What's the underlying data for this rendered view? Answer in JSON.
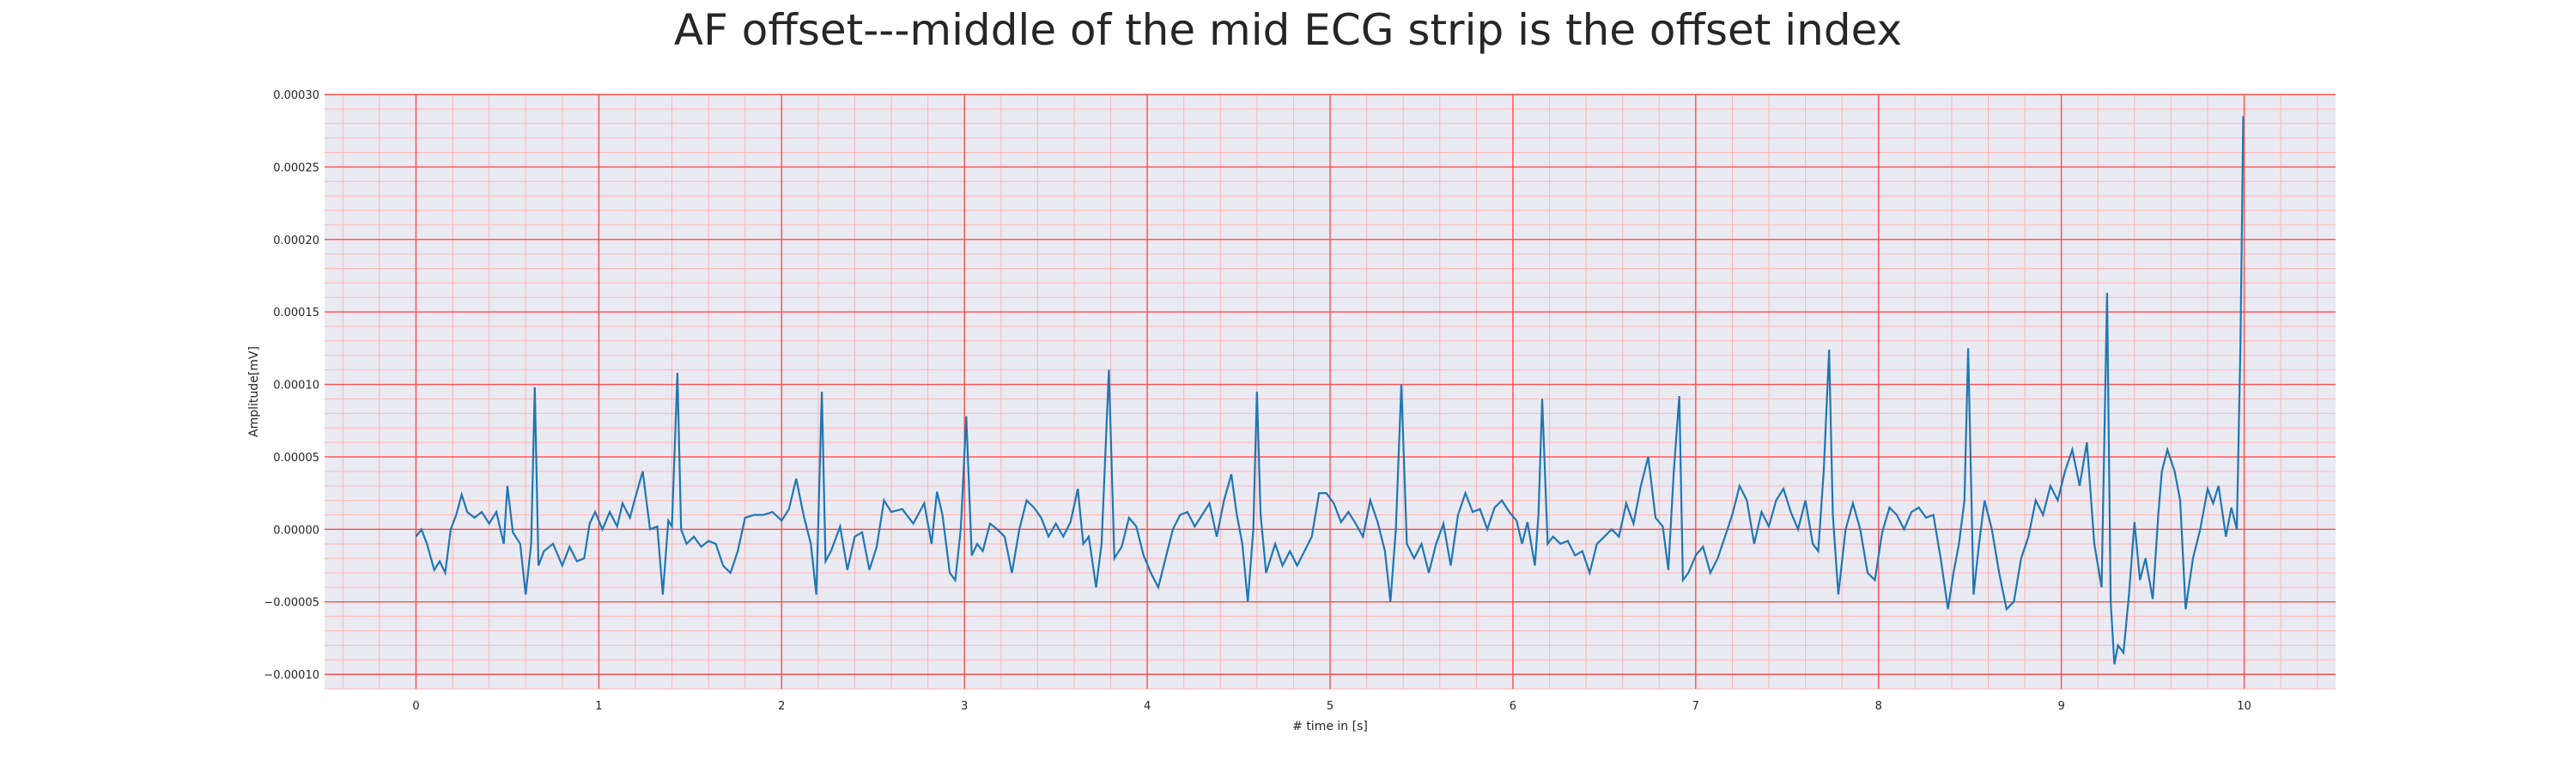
{
  "chart_data": {
    "type": "line",
    "title": "AF offset---middle of the mid ECG strip is the offset index",
    "xlabel": "# time in [s]",
    "ylabel": "Amplitude[mV]",
    "xlim": [
      -0.5,
      10.5
    ],
    "ylim": [
      -0.00011,
      0.0003
    ],
    "xticks": [
      0,
      1,
      2,
      3,
      4,
      5,
      6,
      7,
      8,
      9,
      10
    ],
    "xtick_labels": [
      "0",
      "1",
      "2",
      "3",
      "4",
      "5",
      "6",
      "7",
      "8",
      "9",
      "10"
    ],
    "yticks": [
      -0.0001,
      -5e-05,
      0,
      5e-05,
      0.0001,
      0.00015,
      0.0002,
      0.00025,
      0.0003
    ],
    "ytick_labels": [
      "−0.00010",
      "−0.00005",
      "0.00000",
      "0.00005",
      "0.00010",
      "0.00015",
      "0.00020",
      "0.00025",
      "0.00030"
    ],
    "grid": true,
    "minor_grid": true,
    "colors": {
      "background": "#eaeaf2",
      "major_grid": "#ff4d4d",
      "minor_grid": "#ffb3b3",
      "line": "#1f77b4"
    },
    "series": [
      {
        "points": [
          [
            0.0,
            -5e-06
          ],
          [
            0.03,
            0.0
          ],
          [
            0.06,
            -1e-05
          ],
          [
            0.1,
            -2.8e-05
          ],
          [
            0.13,
            -2.2e-05
          ],
          [
            0.16,
            -3e-05
          ],
          [
            0.19,
            0.0
          ],
          [
            0.22,
            1e-05
          ],
          [
            0.25,
            2.4e-05
          ],
          [
            0.28,
            1.2e-05
          ],
          [
            0.32,
            8e-06
          ],
          [
            0.36,
            1.2e-05
          ],
          [
            0.4,
            4e-06
          ],
          [
            0.44,
            1.2e-05
          ],
          [
            0.48,
            -1e-05
          ],
          [
            0.5,
            3e-05
          ],
          [
            0.53,
            -2e-06
          ],
          [
            0.57,
            -1e-05
          ],
          [
            0.6,
            -4.5e-05
          ],
          [
            0.63,
            -1e-05
          ],
          [
            0.65,
            9.8e-05
          ],
          [
            0.67,
            -2.5e-05
          ],
          [
            0.7,
            -1.5e-05
          ],
          [
            0.75,
            -1e-05
          ],
          [
            0.8,
            -2.5e-05
          ],
          [
            0.84,
            -1.2e-05
          ],
          [
            0.88,
            -2.2e-05
          ],
          [
            0.92,
            -2e-05
          ],
          [
            0.95,
            4e-06
          ],
          [
            0.98,
            1.2e-05
          ],
          [
            1.02,
            0.0
          ],
          [
            1.06,
            1.2e-05
          ],
          [
            1.1,
            2e-06
          ],
          [
            1.13,
            1.8e-05
          ],
          [
            1.17,
            8e-06
          ],
          [
            1.2,
            2.2e-05
          ],
          [
            1.24,
            4e-05
          ],
          [
            1.28,
            0.0
          ],
          [
            1.32,
            2e-06
          ],
          [
            1.35,
            -4.5e-05
          ],
          [
            1.38,
            6e-06
          ],
          [
            1.4,
            2e-06
          ],
          [
            1.43,
            0.000108
          ],
          [
            1.45,
            0.0
          ],
          [
            1.48,
            -1e-05
          ],
          [
            1.52,
            -5e-06
          ],
          [
            1.56,
            -1.2e-05
          ],
          [
            1.6,
            -8e-06
          ],
          [
            1.64,
            -1e-05
          ],
          [
            1.68,
            -2.5e-05
          ],
          [
            1.72,
            -3e-05
          ],
          [
            1.76,
            -1.5e-05
          ],
          [
            1.8,
            8e-06
          ],
          [
            1.85,
            1e-05
          ],
          [
            1.9,
            1e-05
          ],
          [
            1.95,
            1.2e-05
          ],
          [
            2.0,
            6e-06
          ],
          [
            2.04,
            1.4e-05
          ],
          [
            2.08,
            3.5e-05
          ],
          [
            2.12,
            1e-05
          ],
          [
            2.16,
            -1e-05
          ],
          [
            2.19,
            -4.5e-05
          ],
          [
            2.22,
            9.5e-05
          ],
          [
            2.24,
            -2.2e-05
          ],
          [
            2.27,
            -1.5e-05
          ],
          [
            2.32,
            2e-06
          ],
          [
            2.36,
            -2.8e-05
          ],
          [
            2.4,
            -5e-06
          ],
          [
            2.44,
            -2e-06
          ],
          [
            2.48,
            -2.8e-05
          ],
          [
            2.52,
            -1.2e-05
          ],
          [
            2.56,
            2e-05
          ],
          [
            2.6,
            1.2e-05
          ],
          [
            2.66,
            1.4e-05
          ],
          [
            2.72,
            4e-06
          ],
          [
            2.78,
            1.8e-05
          ],
          [
            2.82,
            -1e-05
          ],
          [
            2.85,
            2.6e-05
          ],
          [
            2.88,
            1e-05
          ],
          [
            2.92,
            -3e-05
          ],
          [
            2.95,
            -3.5e-05
          ],
          [
            2.98,
            0.0
          ],
          [
            3.01,
            7.8e-05
          ],
          [
            3.04,
            -1.8e-05
          ],
          [
            3.07,
            -1e-05
          ],
          [
            3.1,
            -1.5e-05
          ],
          [
            3.14,
            4e-06
          ],
          [
            3.18,
            0.0
          ],
          [
            3.22,
            -5e-06
          ],
          [
            3.26,
            -3e-05
          ],
          [
            3.3,
            0.0
          ],
          [
            3.34,
            2e-05
          ],
          [
            3.38,
            1.5e-05
          ],
          [
            3.42,
            8e-06
          ],
          [
            3.46,
            -5e-06
          ],
          [
            3.5,
            4e-06
          ],
          [
            3.54,
            -5e-06
          ],
          [
            3.58,
            5e-06
          ],
          [
            3.62,
            2.8e-05
          ],
          [
            3.65,
            -1e-05
          ],
          [
            3.68,
            -5e-06
          ],
          [
            3.72,
            -4e-05
          ],
          [
            3.75,
            -1e-05
          ],
          [
            3.79,
            0.00011
          ],
          [
            3.82,
            -2e-05
          ],
          [
            3.86,
            -1.2e-05
          ],
          [
            3.9,
            8e-06
          ],
          [
            3.94,
            2e-06
          ],
          [
            3.98,
            -1.8e-05
          ],
          [
            4.02,
            -3e-05
          ],
          [
            4.06,
            -4e-05
          ],
          [
            4.1,
            -2e-05
          ],
          [
            4.14,
            0.0
          ],
          [
            4.18,
            1e-05
          ],
          [
            4.22,
            1.2e-05
          ],
          [
            4.26,
            2e-06
          ],
          [
            4.3,
            1e-05
          ],
          [
            4.34,
            1.8e-05
          ],
          [
            4.38,
            -5e-06
          ],
          [
            4.42,
            2e-05
          ],
          [
            4.46,
            3.8e-05
          ],
          [
            4.49,
            1e-05
          ],
          [
            4.52,
            -1e-05
          ],
          [
            4.55,
            -5e-05
          ],
          [
            4.58,
            0.0
          ],
          [
            4.6,
            9.5e-05
          ],
          [
            4.62,
            1e-05
          ],
          [
            4.65,
            -3e-05
          ],
          [
            4.7,
            -1e-05
          ],
          [
            4.74,
            -2.5e-05
          ],
          [
            4.78,
            -1.5e-05
          ],
          [
            4.82,
            -2.5e-05
          ],
          [
            4.86,
            -1.5e-05
          ],
          [
            4.9,
            -5e-06
          ],
          [
            4.94,
            2.5e-05
          ],
          [
            4.98,
            2.5e-05
          ],
          [
            5.02,
            1.8e-05
          ],
          [
            5.06,
            5e-06
          ],
          [
            5.1,
            1.2e-05
          ],
          [
            5.14,
            4e-06
          ],
          [
            5.18,
            -5e-06
          ],
          [
            5.22,
            2e-05
          ],
          [
            5.26,
            5e-06
          ],
          [
            5.3,
            -1.5e-05
          ],
          [
            5.33,
            -5e-05
          ],
          [
            5.36,
            0.0
          ],
          [
            5.39,
            0.0001
          ],
          [
            5.42,
            -1e-05
          ],
          [
            5.46,
            -2e-05
          ],
          [
            5.5,
            -1e-05
          ],
          [
            5.54,
            -3e-05
          ],
          [
            5.58,
            -1e-05
          ],
          [
            5.62,
            4e-06
          ],
          [
            5.66,
            -2.5e-05
          ],
          [
            5.7,
            1e-05
          ],
          [
            5.74,
            2.5e-05
          ],
          [
            5.78,
            1.2e-05
          ],
          [
            5.82,
            1.4e-05
          ],
          [
            5.86,
            0.0
          ],
          [
            5.9,
            1.5e-05
          ],
          [
            5.94,
            2e-05
          ],
          [
            5.98,
            1.2e-05
          ],
          [
            6.02,
            6e-06
          ],
          [
            6.05,
            -1e-05
          ],
          [
            6.08,
            5e-06
          ],
          [
            6.12,
            -2.5e-05
          ],
          [
            6.14,
            1e-05
          ],
          [
            6.16,
            9e-05
          ],
          [
            6.19,
            -1e-05
          ],
          [
            6.22,
            -5e-06
          ],
          [
            6.26,
            -1e-05
          ],
          [
            6.3,
            -8e-06
          ],
          [
            6.34,
            -1.8e-05
          ],
          [
            6.38,
            -1.5e-05
          ],
          [
            6.42,
            -3e-05
          ],
          [
            6.46,
            -1e-05
          ],
          [
            6.5,
            -5e-06
          ],
          [
            6.54,
            0.0
          ],
          [
            6.58,
            -5e-06
          ],
          [
            6.62,
            1.8e-05
          ],
          [
            6.66,
            4e-06
          ],
          [
            6.7,
            3e-05
          ],
          [
            6.74,
            5e-05
          ],
          [
            6.78,
            8e-06
          ],
          [
            6.82,
            2e-06
          ],
          [
            6.85,
            -2.8e-05
          ],
          [
            6.88,
            4e-05
          ],
          [
            6.91,
            9.2e-05
          ],
          [
            6.93,
            -3.5e-05
          ],
          [
            6.96,
            -3e-05
          ],
          [
            7.0,
            -1.8e-05
          ],
          [
            7.04,
            -1.2e-05
          ],
          [
            7.08,
            -3e-05
          ],
          [
            7.12,
            -2e-05
          ],
          [
            7.16,
            -5e-06
          ],
          [
            7.2,
            1e-05
          ],
          [
            7.24,
            3e-05
          ],
          [
            7.28,
            2e-05
          ],
          [
            7.32,
            -1e-05
          ],
          [
            7.36,
            1.2e-05
          ],
          [
            7.4,
            2e-06
          ],
          [
            7.44,
            2e-05
          ],
          [
            7.48,
            2.8e-05
          ],
          [
            7.52,
            1.2e-05
          ],
          [
            7.56,
            0.0
          ],
          [
            7.6,
            2e-05
          ],
          [
            7.64,
            -1e-05
          ],
          [
            7.67,
            -1.5e-05
          ],
          [
            7.7,
            4e-05
          ],
          [
            7.73,
            0.000124
          ],
          [
            7.75,
            1e-05
          ],
          [
            7.78,
            -4.5e-05
          ],
          [
            7.82,
            0.0
          ],
          [
            7.86,
            1.8e-05
          ],
          [
            7.9,
            0.0
          ],
          [
            7.94,
            -3e-05
          ],
          [
            7.98,
            -3.5e-05
          ],
          [
            8.02,
            -2e-06
          ],
          [
            8.06,
            1.5e-05
          ],
          [
            8.1,
            1e-05
          ],
          [
            8.14,
            0.0
          ],
          [
            8.18,
            1.2e-05
          ],
          [
            8.22,
            1.5e-05
          ],
          [
            8.26,
            8e-06
          ],
          [
            8.3,
            1e-05
          ],
          [
            8.34,
            -2e-05
          ],
          [
            8.38,
            -5.5e-05
          ],
          [
            8.41,
            -3e-05
          ],
          [
            8.44,
            -1e-05
          ],
          [
            8.47,
            2e-05
          ],
          [
            8.49,
            0.000125
          ],
          [
            8.52,
            -4.5e-05
          ],
          [
            8.55,
            -1e-05
          ],
          [
            8.58,
            2e-05
          ],
          [
            8.62,
            0.0
          ],
          [
            8.66,
            -3e-05
          ],
          [
            8.7,
            -5.5e-05
          ],
          [
            8.74,
            -5e-05
          ],
          [
            8.78,
            -2e-05
          ],
          [
            8.82,
            -5e-06
          ],
          [
            8.86,
            2e-05
          ],
          [
            8.9,
            1e-05
          ],
          [
            8.94,
            3e-05
          ],
          [
            8.98,
            2e-05
          ],
          [
            9.02,
            4e-05
          ],
          [
            9.06,
            5.5e-05
          ],
          [
            9.1,
            3e-05
          ],
          [
            9.14,
            6e-05
          ],
          [
            9.18,
            -1e-05
          ],
          [
            9.22,
            -4e-05
          ],
          [
            9.25,
            0.000163
          ],
          [
            9.27,
            -5e-05
          ],
          [
            9.29,
            -9.3e-05
          ],
          [
            9.31,
            -8e-05
          ],
          [
            9.34,
            -8.5e-05
          ],
          [
            9.37,
            -4.5e-05
          ],
          [
            9.4,
            5e-06
          ],
          [
            9.43,
            -3.5e-05
          ],
          [
            9.46,
            -2e-05
          ],
          [
            9.5,
            -4.8e-05
          ],
          [
            9.53,
            1e-05
          ],
          [
            9.55,
            4e-05
          ],
          [
            9.58,
            5.5e-05
          ],
          [
            9.62,
            4e-05
          ],
          [
            9.65,
            2e-05
          ],
          [
            9.68,
            -5.5e-05
          ],
          [
            9.72,
            -2e-05
          ],
          [
            9.76,
            0.0
          ],
          [
            9.8,
            2.8e-05
          ],
          [
            9.83,
            1.8e-05
          ],
          [
            9.86,
            3e-05
          ],
          [
            9.9,
            -5e-06
          ],
          [
            9.93,
            1.5e-05
          ],
          [
            9.96,
            0.0
          ],
          [
            9.98,
            0.00013
          ],
          [
            9.995,
            0.000285
          ]
        ]
      }
    ]
  }
}
